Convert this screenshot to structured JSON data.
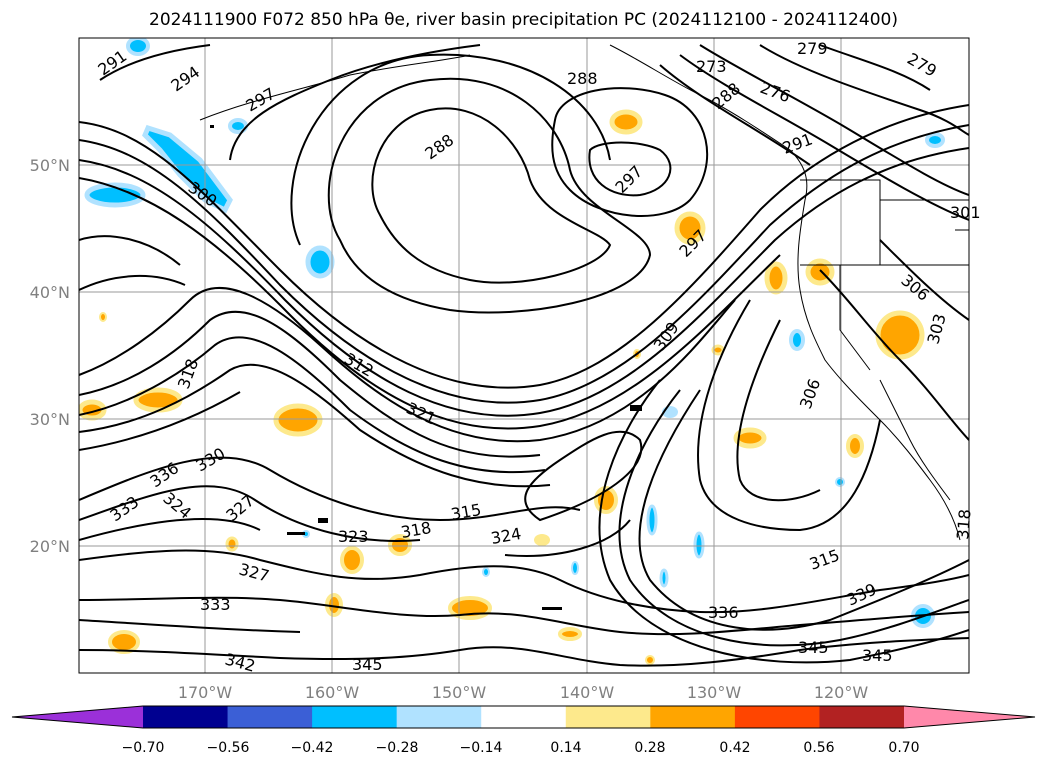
{
  "figure": {
    "title": "2024111900 F072 850 hPa θe, river basin precipitation PC (2024112100 - 2024112400)"
  },
  "map": {
    "lat_labels": [
      "50°N",
      "40°N",
      "30°N",
      "20°N"
    ],
    "lon_labels": [
      "170°W",
      "160°W",
      "150°W",
      "140°W",
      "130°W",
      "120°W"
    ],
    "contour_labels": [
      "291",
      "294",
      "297",
      "288",
      "300",
      "288",
      "297",
      "273",
      "279",
      "279",
      "276",
      "288",
      "291",
      "297",
      "306",
      "309",
      "306",
      "303",
      "312",
      "321",
      "318",
      "330",
      "336",
      "324",
      "333",
      "327",
      "323",
      "318",
      "315",
      "324",
      "327",
      "333",
      "342",
      "345",
      "336",
      "339",
      "315",
      "345",
      "345",
      "318",
      "301"
    ]
  },
  "colorbar": {
    "ticks": [
      "−0.70",
      "−0.56",
      "−0.42",
      "−0.28",
      "−0.14",
      "0.14",
      "0.28",
      "0.42",
      "0.56",
      "0.70"
    ],
    "colors": [
      "#9b30d9",
      "#000090",
      "#3b5fd6",
      "#00bfff",
      "#b0e2ff",
      "#ffffff",
      "#fde98c",
      "#ffa500",
      "#ff4500",
      "#b22222",
      "#ff88aa"
    ]
  }
}
